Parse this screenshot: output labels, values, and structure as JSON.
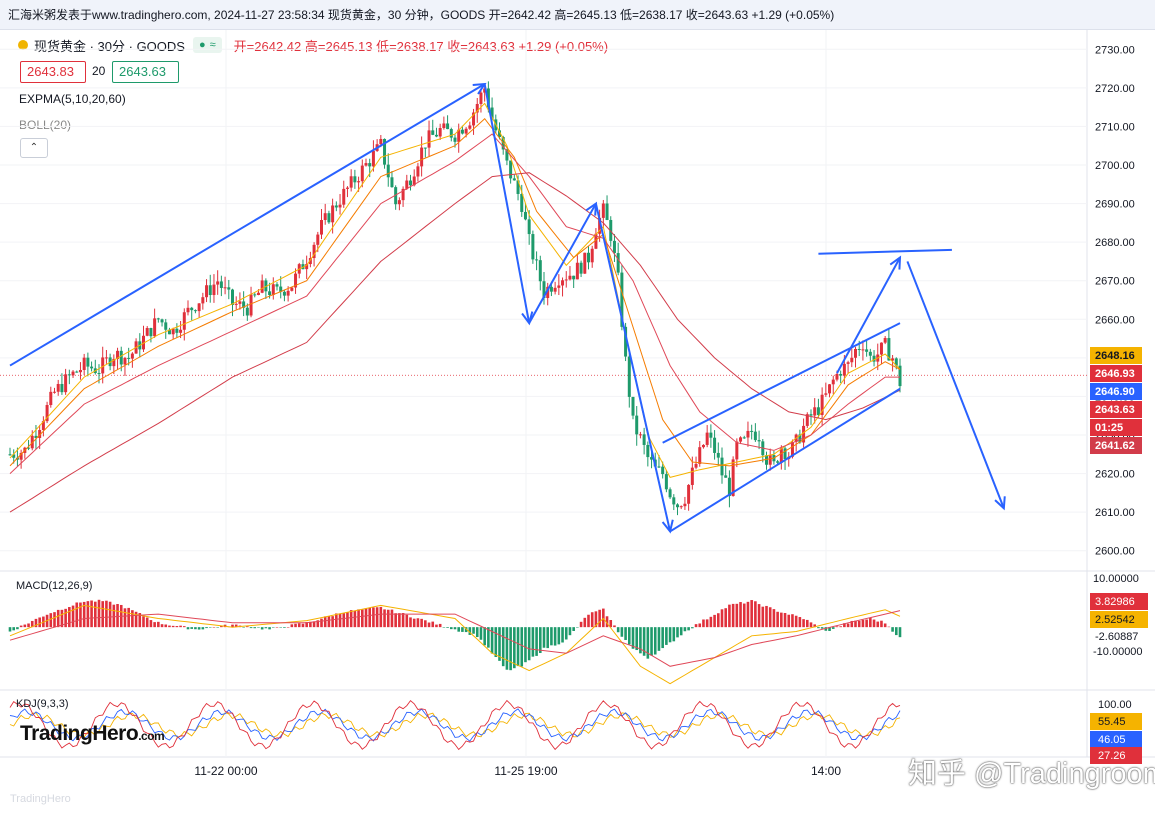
{
  "header": {
    "text": "汇海米粥发表于www.tradinghero.com, 2024-11-27 23:58:34 现货黄金，30 分钟，GOODS 开=2642.42 高=2645.13 低=2638.17 收=2643.63 +1.29 (+0.05%)"
  },
  "legend": {
    "symbol": "现货黄金 · 30分 · GOODS",
    "flag": "≈",
    "ohlc": "开=2642.42  高=2645.13  低=2638.17  收=2643.63  +1.29  (+0.05%)"
  },
  "quote": {
    "sell": "2643.83",
    "spread": "20",
    "buy": "2643.63"
  },
  "indicators": {
    "exp": "EXPMA(5,10,20,60)",
    "boll": "BOLL(20)",
    "collapse": "⌃"
  },
  "panes": {
    "macd": "MACD(12,26,9)",
    "kdj": "KDJ(9,3,3)"
  },
  "branding": {
    "logo": "TradingHero",
    "logo_suffix": ".com",
    "footer": "TradingHero",
    "watermark": "知乎 @Tradingroom"
  },
  "colors": {
    "up": "#e0303b",
    "down": "#1e9a6b",
    "drawing": "#2962ff",
    "ma5": "#f5b300",
    "ma10": "#f57c00",
    "ma20": "#e04858",
    "ma60": "#d23c4a"
  },
  "chart_data": [
    {
      "type": "candlestick",
      "title": "现货黄金 · 30分 · GOODS",
      "x_ticks": [
        "11-22 00:00",
        "11-25 19:00",
        "14:00"
      ],
      "ylim": [
        2595,
        2735
      ],
      "y_ticks": [
        "2730.00",
        "2720.00",
        "2710.00",
        "2700.00",
        "2690.00",
        "2680.00",
        "2670.00",
        "2660.00",
        "2650.00",
        "2640.00",
        "2630.00",
        "2620.00",
        "2610.00",
        "2600.00"
      ],
      "price_labels": [
        {
          "value": "2648.16",
          "color": "#f5b300",
          "text_color": "#131722"
        },
        {
          "value": "2646.93",
          "color": "#e0303b",
          "text_color": "#ffffff"
        },
        {
          "value": "2646.90",
          "color": "#2962ff",
          "text_color": "#ffffff"
        },
        {
          "value": "2643.63",
          "color": "#e0303b",
          "text_color": "#ffffff"
        },
        {
          "value": "01:25",
          "color": "#e0303b",
          "text_color": "#ffffff"
        },
        {
          "value": "2641.62",
          "color": "#d23c4a",
          "text_color": "#ffffff"
        }
      ],
      "close_path": [
        [
          0,
          2625
        ],
        [
          4,
          2626
        ],
        [
          8,
          2633
        ],
        [
          12,
          2641
        ],
        [
          16,
          2645
        ],
        [
          20,
          2648
        ],
        [
          24,
          2647
        ],
        [
          28,
          2651
        ],
        [
          32,
          2650
        ],
        [
          36,
          2655
        ],
        [
          40,
          2660
        ],
        [
          44,
          2657
        ],
        [
          48,
          2662
        ],
        [
          52,
          2666
        ],
        [
          56,
          2670
        ],
        [
          60,
          2664
        ],
        [
          64,
          2663
        ],
        [
          68,
          2668
        ],
        [
          72,
          2667
        ],
        [
          76,
          2669
        ],
        [
          80,
          2676
        ],
        [
          84,
          2684
        ],
        [
          88,
          2690
        ],
        [
          92,
          2695
        ],
        [
          96,
          2700
        ],
        [
          100,
          2705
        ],
        [
          104,
          2690
        ],
        [
          108,
          2697
        ],
        [
          112,
          2706
        ],
        [
          116,
          2709
        ],
        [
          120,
          2708
        ],
        [
          124,
          2712
        ],
        [
          128,
          2720
        ],
        [
          130,
          2712
        ],
        [
          134,
          2700
        ],
        [
          138,
          2690
        ],
        [
          140,
          2680
        ],
        [
          144,
          2667
        ],
        [
          148,
          2671
        ],
        [
          152,
          2672
        ],
        [
          156,
          2676
        ],
        [
          158,
          2684
        ],
        [
          160,
          2688
        ],
        [
          162,
          2682
        ],
        [
          164,
          2670
        ],
        [
          166,
          2649
        ],
        [
          168,
          2633
        ],
        [
          170,
          2629
        ],
        [
          172,
          2624
        ],
        [
          174,
          2621
        ],
        [
          176,
          2620
        ],
        [
          178,
          2615
        ],
        [
          180,
          2612
        ],
        [
          182,
          2614
        ],
        [
          184,
          2620
        ],
        [
          186,
          2625
        ],
        [
          188,
          2630
        ],
        [
          190,
          2626
        ],
        [
          192,
          2620
        ],
        [
          194,
          2616
        ],
        [
          196,
          2627
        ],
        [
          198,
          2628
        ],
        [
          200,
          2631
        ],
        [
          202,
          2630
        ],
        [
          204,
          2624
        ],
        [
          206,
          2622
        ],
        [
          208,
          2627
        ],
        [
          210,
          2625
        ],
        [
          212,
          2628
        ],
        [
          214,
          2632
        ],
        [
          216,
          2635
        ],
        [
          218,
          2637
        ],
        [
          220,
          2640
        ],
        [
          222,
          2644
        ],
        [
          224,
          2647
        ],
        [
          226,
          2648
        ],
        [
          228,
          2652
        ],
        [
          230,
          2654
        ],
        [
          232,
          2650
        ],
        [
          234,
          2651
        ],
        [
          236,
          2653
        ],
        [
          238,
          2650
        ],
        [
          240,
          2643.63
        ]
      ],
      "expma": {
        "ema5": [
          [
            0,
            2624
          ],
          [
            20,
            2645
          ],
          [
            40,
            2656
          ],
          [
            60,
            2664
          ],
          [
            80,
            2674
          ],
          [
            100,
            2702
          ],
          [
            120,
            2708
          ],
          [
            128,
            2716
          ],
          [
            134,
            2705
          ],
          [
            140,
            2687
          ],
          [
            150,
            2674
          ],
          [
            160,
            2684
          ],
          [
            166,
            2656
          ],
          [
            172,
            2630
          ],
          [
            178,
            2619
          ],
          [
            186,
            2621
          ],
          [
            196,
            2623
          ],
          [
            206,
            2625
          ],
          [
            216,
            2632
          ],
          [
            226,
            2646
          ],
          [
            236,
            2651
          ],
          [
            240,
            2647
          ]
        ],
        "ema10": [
          [
            0,
            2622
          ],
          [
            20,
            2642
          ],
          [
            40,
            2653
          ],
          [
            60,
            2662
          ],
          [
            80,
            2670
          ],
          [
            100,
            2697
          ],
          [
            120,
            2705
          ],
          [
            128,
            2712
          ],
          [
            136,
            2702
          ],
          [
            142,
            2688
          ],
          [
            152,
            2676
          ],
          [
            160,
            2682
          ],
          [
            168,
            2658
          ],
          [
            176,
            2634
          ],
          [
            184,
            2623
          ],
          [
            194,
            2622
          ],
          [
            206,
            2624
          ],
          [
            216,
            2630
          ],
          [
            226,
            2643
          ],
          [
            236,
            2649
          ],
          [
            240,
            2647
          ]
        ],
        "ema20": [
          [
            0,
            2620
          ],
          [
            20,
            2638
          ],
          [
            40,
            2648
          ],
          [
            60,
            2657
          ],
          [
            80,
            2666
          ],
          [
            100,
            2690
          ],
          [
            120,
            2701
          ],
          [
            130,
            2708
          ],
          [
            140,
            2697
          ],
          [
            150,
            2684
          ],
          [
            160,
            2681
          ],
          [
            168,
            2670
          ],
          [
            178,
            2648
          ],
          [
            186,
            2636
          ],
          [
            196,
            2628
          ],
          [
            206,
            2626
          ],
          [
            216,
            2630
          ],
          [
            226,
            2638
          ],
          [
            236,
            2645
          ],
          [
            240,
            2645
          ]
        ],
        "ema60": [
          [
            0,
            2610
          ],
          [
            20,
            2622
          ],
          [
            40,
            2633
          ],
          [
            60,
            2645
          ],
          [
            80,
            2654
          ],
          [
            100,
            2675
          ],
          [
            120,
            2690
          ],
          [
            130,
            2697
          ],
          [
            140,
            2698
          ],
          [
            150,
            2692
          ],
          [
            160,
            2685
          ],
          [
            170,
            2674
          ],
          [
            180,
            2660
          ],
          [
            190,
            2650
          ],
          [
            200,
            2642
          ],
          [
            210,
            2636
          ],
          [
            220,
            2634
          ],
          [
            230,
            2637
          ],
          [
            240,
            2641.62
          ]
        ]
      },
      "annotations": {
        "trend_line_up": [
          [
            0,
            2648
          ],
          [
            128,
            2721
          ]
        ],
        "wave_lines": [
          [
            [
              128,
              2721
            ],
            [
              140,
              2659
            ],
            [
              158,
              2690
            ],
            [
              178,
              2605
            ]
          ]
        ],
        "channel_upper": [
          [
            176,
            2628
          ],
          [
            240,
            2659
          ]
        ],
        "channel_lower": [
          [
            178,
            2605
          ],
          [
            240,
            2642
          ]
        ],
        "horizontal_target": [
          [
            218,
            2677
          ],
          [
            254,
            2678
          ]
        ],
        "forecast_up": [
          [
            223,
            2646
          ],
          [
            240,
            2676
          ]
        ],
        "forecast_down": [
          [
            242,
            2675
          ],
          [
            268,
            2611
          ]
        ]
      }
    },
    {
      "type": "bar",
      "title": "MACD(12,26,9)",
      "y_ticks": [
        "10.00000",
        "-10.00000"
      ],
      "price_labels": [
        {
          "value": "3.82986",
          "color": "#e0303b",
          "text_color": "#ffffff"
        },
        {
          "value": "2.52542",
          "color": "#f5b300",
          "text_color": "#131722"
        },
        {
          "value": "-2.60887",
          "color": "none",
          "text_color": "#131722"
        }
      ],
      "ylim": [
        -14,
        12
      ],
      "histogram": [
        [
          0,
          -1
        ],
        [
          10,
          3
        ],
        [
          20,
          6
        ],
        [
          25,
          6
        ],
        [
          30,
          5
        ],
        [
          40,
          1
        ],
        [
          50,
          -0.5
        ],
        [
          60,
          0.5
        ],
        [
          70,
          -0.5
        ],
        [
          80,
          1
        ],
        [
          90,
          3.5
        ],
        [
          100,
          4.5
        ],
        [
          110,
          2
        ],
        [
          120,
          -0.5
        ],
        [
          126,
          -2
        ],
        [
          130,
          -6
        ],
        [
          134,
          -10
        ],
        [
          138,
          -9
        ],
        [
          144,
          -5
        ],
        [
          150,
          -3
        ],
        [
          156,
          3
        ],
        [
          160,
          4
        ],
        [
          164,
          -1
        ],
        [
          168,
          -5
        ],
        [
          172,
          -7
        ],
        [
          176,
          -5
        ],
        [
          182,
          -1
        ],
        [
          188,
          2
        ],
        [
          194,
          5
        ],
        [
          200,
          6
        ],
        [
          206,
          4
        ],
        [
          214,
          2
        ],
        [
          220,
          -1
        ],
        [
          226,
          1
        ],
        [
          232,
          2
        ],
        [
          236,
          1
        ],
        [
          240,
          -2.5
        ]
      ],
      "diff": [
        [
          0,
          -2
        ],
        [
          20,
          5
        ],
        [
          40,
          2
        ],
        [
          60,
          0
        ],
        [
          80,
          1.5
        ],
        [
          100,
          5
        ],
        [
          120,
          2
        ],
        [
          130,
          -6
        ],
        [
          140,
          -10
        ],
        [
          150,
          -6
        ],
        [
          160,
          2
        ],
        [
          170,
          -9
        ],
        [
          178,
          -13
        ],
        [
          190,
          -7
        ],
        [
          200,
          -2
        ],
        [
          212,
          -1
        ],
        [
          226,
          2
        ],
        [
          236,
          4
        ],
        [
          240,
          2.5
        ]
      ],
      "dea": [
        [
          0,
          -3
        ],
        [
          20,
          2
        ],
        [
          40,
          3
        ],
        [
          60,
          1
        ],
        [
          80,
          1
        ],
        [
          100,
          3
        ],
        [
          120,
          3
        ],
        [
          130,
          -1
        ],
        [
          140,
          -5
        ],
        [
          150,
          -6
        ],
        [
          160,
          -2
        ],
        [
          170,
          -5
        ],
        [
          178,
          -9
        ],
        [
          190,
          -7
        ],
        [
          200,
          -4
        ],
        [
          212,
          -2
        ],
        [
          226,
          1
        ],
        [
          236,
          3
        ],
        [
          240,
          3.8
        ]
      ]
    },
    {
      "type": "line",
      "title": "KDJ(9,3,3)",
      "y_ticks": [
        "100.00"
      ],
      "price_labels": [
        {
          "value": "55.45",
          "color": "#f5b300",
          "text_color": "#131722"
        },
        {
          "value": "46.05",
          "color": "#2962ff",
          "text_color": "#ffffff"
        },
        {
          "value": "27.26",
          "color": "#e0303b",
          "text_color": "#ffffff"
        }
      ],
      "ylim": [
        0,
        110
      ]
    }
  ]
}
